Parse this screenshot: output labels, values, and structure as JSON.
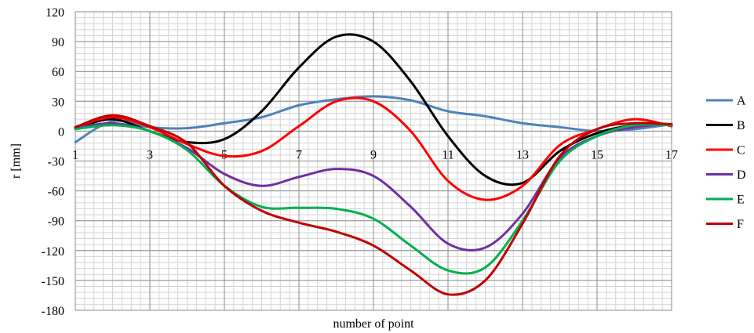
{
  "chart_data": {
    "type": "line",
    "xlabel": "number of point",
    "ylabel": "r  [mm]",
    "xlim": [
      1,
      17
    ],
    "ylim": [
      -180,
      120
    ],
    "x_ticks": [
      "1",
      "3",
      "5",
      "7",
      "9",
      "11",
      "13",
      "15",
      "17"
    ],
    "y_ticks": [
      "120",
      "90",
      "60",
      "30",
      "0",
      "-30",
      "-60",
      "-90",
      "-120",
      "-150",
      "-180"
    ],
    "grid": true,
    "legend_position": "right",
    "x": [
      1,
      2,
      3,
      4,
      5,
      6,
      7,
      8,
      9,
      10,
      11,
      12,
      13,
      14,
      15,
      16,
      17
    ],
    "series": [
      {
        "name": "A",
        "color": "#4F81BD",
        "values": [
          -11,
          10,
          4,
          3,
          8,
          14,
          26,
          32,
          35,
          31,
          20,
          15,
          8,
          4,
          0,
          2,
          7
        ]
      },
      {
        "name": "B",
        "color": "#000000",
        "values": [
          3,
          12,
          0,
          -11,
          -8,
          20,
          64,
          95,
          90,
          50,
          -5,
          -45,
          -52,
          -20,
          -2,
          6,
          7
        ]
      },
      {
        "name": "C",
        "color": "#FF0000",
        "values": [
          4,
          14,
          4,
          -13,
          -25,
          -20,
          5,
          30,
          30,
          0,
          -50,
          -69,
          -55,
          -14,
          2,
          12,
          5
        ]
      },
      {
        "name": "D",
        "color": "#7030A0",
        "values": [
          3,
          8,
          0,
          -17,
          -43,
          -55,
          -46,
          -38,
          -45,
          -76,
          -113,
          -117,
          -83,
          -27,
          -5,
          4,
          7
        ]
      },
      {
        "name": "E",
        "color": "#00B050",
        "values": [
          2,
          6,
          0,
          -19,
          -55,
          -76,
          -77,
          -78,
          -88,
          -115,
          -140,
          -137,
          -90,
          -30,
          -5,
          6,
          6
        ]
      },
      {
        "name": "F",
        "color": "#C00000",
        "values": [
          4,
          16,
          5,
          -12,
          -55,
          -80,
          -92,
          -101,
          -115,
          -140,
          -164,
          -150,
          -93,
          -25,
          2,
          8,
          7
        ]
      }
    ]
  }
}
